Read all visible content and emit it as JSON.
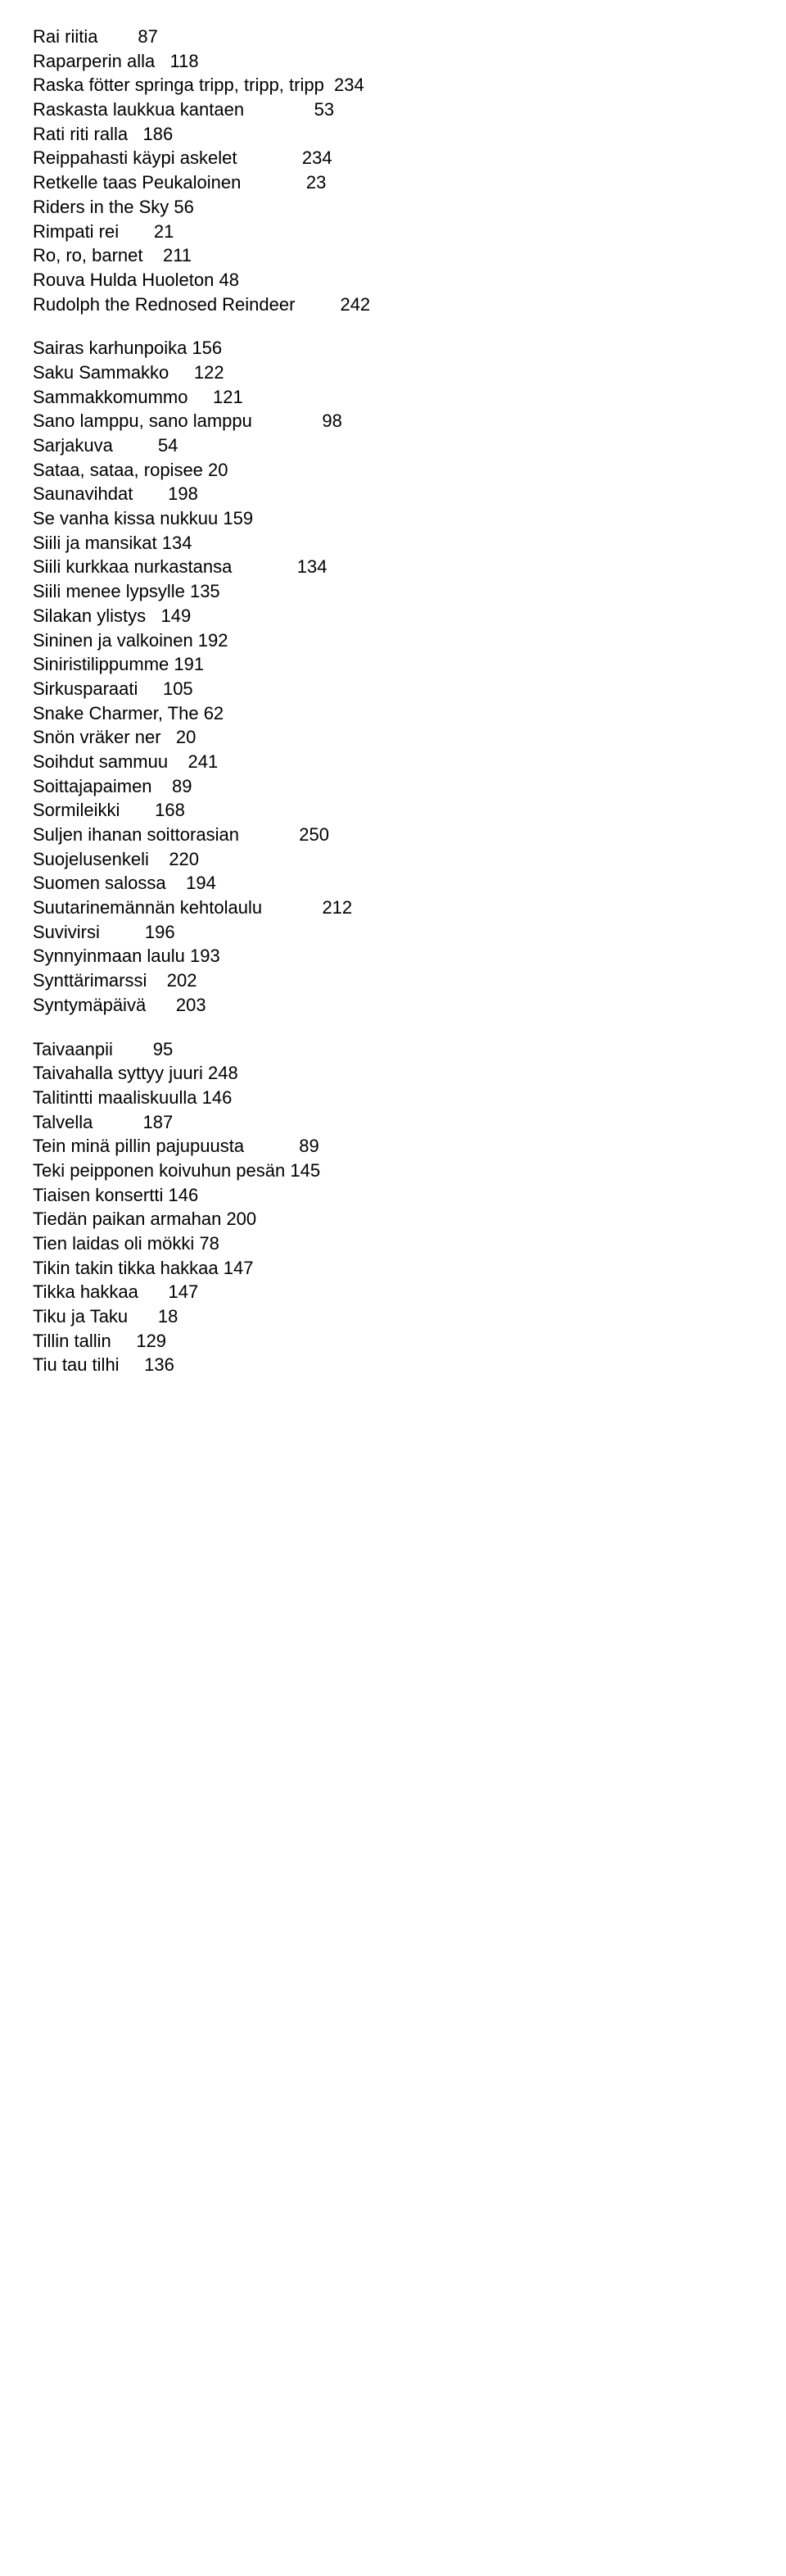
{
  "groups": [
    {
      "entries": [
        {
          "title": "Rai riitia",
          "col1": "87",
          "col2": ""
        },
        {
          "title": "Raparperin alla",
          "col1": "118",
          "col2": ""
        },
        {
          "title": "Raska fötter springa tripp, tripp, tripp",
          "col1": "",
          "col2": "234"
        },
        {
          "title": "Raskasta laukkua kantaen",
          "col1": "",
          "col2": "53"
        },
        {
          "title": "Rati riti ralla",
          "col1": "186",
          "col2": ""
        },
        {
          "title": "Reippahasti käypi askelet",
          "col1": "",
          "col2": "234"
        },
        {
          "title": "Retkelle taas Peukaloinen",
          "col1": "",
          "col2": "23"
        },
        {
          "title": "Riders in the Sky",
          "col1": "56",
          "col2": ""
        },
        {
          "title": "Rimpati rei",
          "col1": "21",
          "col2": ""
        },
        {
          "title": "Ro, ro, barnet",
          "col1": "211",
          "col2": ""
        },
        {
          "title": "Rouva Hulda Huoleton",
          "col1": "48",
          "col2": ""
        },
        {
          "title": "Rudolph the Rednosed Reindeer",
          "col1": "",
          "col2": "242"
        }
      ]
    },
    {
      "entries": [
        {
          "title": "Sairas karhunpoika",
          "col1": "156",
          "col2": ""
        },
        {
          "title": "Saku Sammakko",
          "col1": "122",
          "col2": ""
        },
        {
          "title": "Sammakkomummo",
          "col1": "121",
          "col2": ""
        },
        {
          "title": "Sano lamppu, sano lamppu",
          "col1": "",
          "col2": "98"
        },
        {
          "title": "Sarjakuva",
          "col1": "54",
          "col2": ""
        },
        {
          "title": "Sataa, sataa, ropisee",
          "col1": "20",
          "col2": ""
        },
        {
          "title": "Saunavihdat",
          "col1": "198",
          "col2": ""
        },
        {
          "title": "Se vanha kissa nukkuu",
          "col1": "159",
          "col2": ""
        },
        {
          "title": "Siili ja mansikat",
          "col1": "134",
          "col2": ""
        },
        {
          "title": "Siili kurkkaa nurkastansa",
          "col1": "",
          "col2": "134"
        },
        {
          "title": "Siili menee lypsylle",
          "col1": "135",
          "col2": ""
        },
        {
          "title": "Silakan ylistys",
          "col1": "149",
          "col2": ""
        },
        {
          "title": "Sininen ja valkoinen",
          "col1": "192",
          "col2": ""
        },
        {
          "title": "Siniristilippumme",
          "col1": "191",
          "col2": ""
        },
        {
          "title": "Sirkusparaati",
          "col1": "105",
          "col2": ""
        },
        {
          "title": "Snake Charmer, The",
          "col1": "62",
          "col2": ""
        },
        {
          "title": "Snön vräker ner",
          "col1": "20",
          "col2": ""
        },
        {
          "title": "Soihdut sammuu",
          "col1": "241",
          "col2": ""
        },
        {
          "title": "Soittajapaimen",
          "col1": "89",
          "col2": ""
        },
        {
          "title": "Sormileikki",
          "col1": "168",
          "col2": ""
        },
        {
          "title": "Suljen ihanan soittorasian",
          "col1": "",
          "col2": "250"
        },
        {
          "title": "Suojelusenkeli",
          "col1": "220",
          "col2": ""
        },
        {
          "title": "Suomen salossa",
          "col1": "194",
          "col2": ""
        },
        {
          "title": "Suutarinemännän kehtolaulu",
          "col1": "",
          "col2": "212"
        },
        {
          "title": "Suvivirsi",
          "col1": "196",
          "col2": ""
        },
        {
          "title": "Synnyinmaan laulu",
          "col1": "193",
          "col2": ""
        },
        {
          "title": "Synttärimarssi",
          "col1": "202",
          "col2": ""
        },
        {
          "title": "Syntymäpäivä",
          "col1": "203",
          "col2": ""
        }
      ]
    },
    {
      "entries": [
        {
          "title": "Taivaanpii",
          "col1": "95",
          "col2": ""
        },
        {
          "title": "Taivahalla syttyy juuri",
          "col1": "248",
          "col2": ""
        },
        {
          "title": "Talitintti maaliskuulla",
          "col1": "146",
          "col2": ""
        },
        {
          "title": "Talvella",
          "col1": "187",
          "col2": ""
        },
        {
          "title": "Tein minä pillin pajupuusta",
          "col1": "",
          "col2": "89"
        },
        {
          "title": "Teki peipponen koivuhun pesän",
          "col1": "145",
          "col2": ""
        },
        {
          "title": "Tiaisen konsertti",
          "col1": "146",
          "col2": ""
        },
        {
          "title": "Tiedän paikan armahan",
          "col1": "200",
          "col2": ""
        },
        {
          "title": "Tien laidas oli mökki",
          "col1": "78",
          "col2": ""
        },
        {
          "title": "Tikin takin tikka hakkaa",
          "col1": "147",
          "col2": ""
        },
        {
          "title": "Tikka hakkaa",
          "col1": "147",
          "col2": ""
        },
        {
          "title": "Tiku ja Taku",
          "col1": "18",
          "col2": ""
        },
        {
          "title": "Tillin tallin",
          "col1": "129",
          "col2": ""
        },
        {
          "title": "Tiu tau tilhi",
          "col1": "136",
          "col2": ""
        }
      ]
    }
  ],
  "layout": {
    "tab1": 18,
    "tab2": 38
  }
}
